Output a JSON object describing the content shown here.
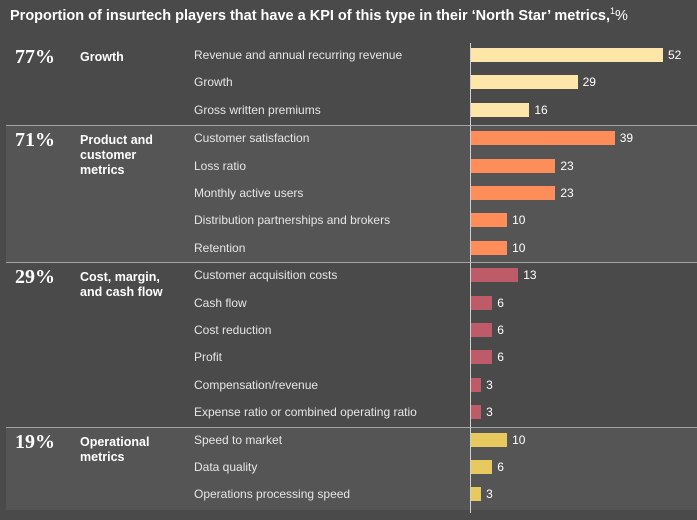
{
  "title": "Proportion of insurtech players that have a KPI of this type in their ‘North Star’ metrics,",
  "title_footnote": "1",
  "title_unit": "%",
  "chart_data": {
    "type": "bar",
    "orientation": "horizontal",
    "title": "Proportion of insurtech players that have a KPI of this type in their ‘North Star’ metrics,",
    "unit": "%",
    "xlim": [
      0,
      52
    ],
    "groups": [
      {
        "name": "Growth",
        "share": "77%",
        "color": "#fde6a7",
        "categories": [
          "Revenue and annual recurring revenue",
          "Growth",
          "Gross written premiums"
        ],
        "values": [
          52,
          29,
          16
        ]
      },
      {
        "name": "Product and customer metrics",
        "share": "71%",
        "color": "#fe8d5a",
        "categories": [
          "Customer satisfaction",
          "Loss ratio",
          "Monthly active users",
          "Distribution partnerships and brokers",
          "Retention"
        ],
        "values": [
          39,
          23,
          23,
          10,
          10
        ]
      },
      {
        "name": "Cost, margin, and cash flow",
        "share": "29%",
        "color": "#bd5c68",
        "categories": [
          "Customer acquisition costs",
          "Cash flow",
          "Cost reduction",
          "Profit",
          "Compensation/revenue",
          "Expense ratio or combined operating ratio"
        ],
        "values": [
          13,
          6,
          6,
          6,
          3,
          3
        ]
      },
      {
        "name": "Operational metrics",
        "share": "19%",
        "color": "#e8c95f",
        "categories": [
          "Speed to market",
          "Data quality",
          "Operations processing speed"
        ],
        "values": [
          10,
          6,
          3
        ]
      }
    ]
  }
}
